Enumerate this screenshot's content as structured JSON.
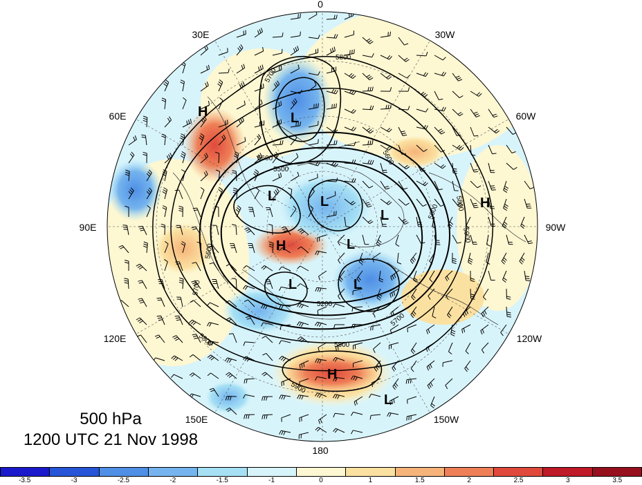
{
  "caption": {
    "level": "500 hPa",
    "datetime": "1200 UTC 21 Nov 1998"
  },
  "map": {
    "projection": "north-polar-stereographic",
    "longitude_labels": [
      {
        "name": "0",
        "text": "0"
      },
      {
        "name": "30W",
        "text": "30W"
      },
      {
        "name": "60W",
        "text": "60W"
      },
      {
        "name": "90W",
        "text": "90W"
      },
      {
        "name": "120W",
        "text": "120W"
      },
      {
        "name": "150W",
        "text": "150W"
      },
      {
        "name": "180",
        "text": "180"
      },
      {
        "name": "150E",
        "text": "150E"
      },
      {
        "name": "120E",
        "text": "120E"
      },
      {
        "name": "90E",
        "text": "90E"
      },
      {
        "name": "60E",
        "text": "60E"
      },
      {
        "name": "30E",
        "text": "30E"
      }
    ],
    "pressure_centers": [
      {
        "type": "H",
        "text": "H"
      },
      {
        "type": "L",
        "text": "L"
      },
      {
        "type": "L",
        "text": "L"
      },
      {
        "type": "L",
        "text": "L"
      },
      {
        "type": "L",
        "text": "L"
      },
      {
        "type": "H",
        "text": "H"
      },
      {
        "type": "L",
        "text": "L"
      },
      {
        "type": "H",
        "text": "H"
      },
      {
        "type": "L",
        "text": "L"
      },
      {
        "type": "L",
        "text": "L"
      },
      {
        "type": "H",
        "text": "H"
      },
      {
        "type": "L",
        "text": "L"
      }
    ],
    "contour_labels": [
      "5800",
      "5700",
      "5600",
      "5600",
      "5500",
      "5600",
      "5200",
      "5700",
      "5800",
      "5700",
      "5800",
      "5900",
      "5600",
      "5800",
      "5900"
    ]
  },
  "colorbar": {
    "colors": [
      "#1a1acc",
      "#2655d8",
      "#4f8fe6",
      "#75b4ee",
      "#a6e0f5",
      "#d8f4fb",
      "#fdf7d2",
      "#fbe1a1",
      "#f6b47a",
      "#ee7f57",
      "#e04a3c",
      "#bf1a28",
      "#96101d"
    ],
    "tick_labels": [
      "-3.5",
      "-3",
      "-2.5",
      "-2",
      "-1.5",
      "-1",
      "0",
      "1",
      "1.5",
      "2",
      "2.5",
      "3",
      "3.5"
    ]
  }
}
